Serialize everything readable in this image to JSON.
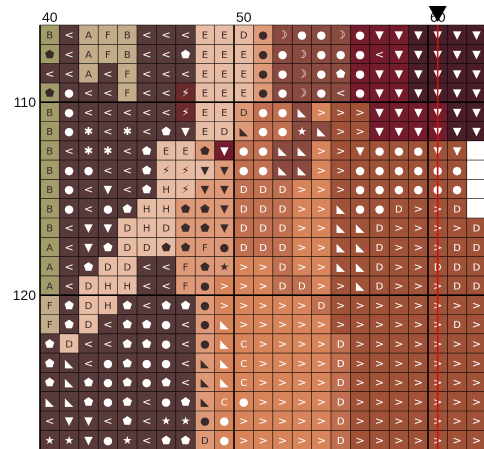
{
  "pattern": {
    "col_start": 40,
    "row_start": 106,
    "col_labels": [
      "40",
      "50",
      "60"
    ],
    "row_labels": [
      "110",
      "120"
    ],
    "colors": {
      "O": "#a39c6a",
      "G": "#8a7a4a",
      "S": "#c2ac8a",
      "R": "#a0522d",
      "M": "#593a3a",
      "N": "#6b2b2b",
      "W": "#741c2c",
      "B": "#8a4a40",
      "P": "#e8bca4",
      "Q": "#f0c8b0",
      "E": "#de9a78",
      "C": "#c07050",
      "K": "#d8845a",
      "L": "#ee9a68",
      "V": "#4a1e26",
      "D": "#5a1a2a",
      "H": "#a05238",
      "I": "#b06040"
    },
    "grid": [
      "B.O < A.S F.S B.S < < < E.P E.P D.P O.E K.B O.B O.B N.B O.W V.W V.W V.V V.V V.V V.V",
      "P.O < A.S F.S B.S < < P.M E.P E.P E.P O.E O.B K.B O.B N.B O.W N.W V.W V.V V.V V.V V.V",
      "< < A.S < F.S < < < E.P E.P E.P O.E O.B K.B O.B N.B O.W V.W V.W V.V V.V V.V V.V V.V",
      "P.O O.M < < F.S < < Z.N E.P E.P E.P O.E O.B K.B O.B N.B O.W V.W V.W V.V V.V V.V V.V",
      "B.O O.M < < < < < Z.N E.P E.P D.E O.C O.C T.B > > > V.W V.W V.W V.W V.V V.V",
      "B.O O.M X.M < X.M < P.M N.M E.P D.P T.E O.C O.C Y.B T.B > > V.W V.W V.W V.W V.V V.V",
      "B.O < X.M X.M < P.M E.P E.P P.E V.W O.C O.C T.B T.B > > V.H O.H O.H O.H V.H V.H",
      "B.O O.M O.M < < P.M Z.P Z.P V.P V.E O.C O.C T.B T.B > > O.H O.H O.H O.H O.H O.H",
      "B.O O.M < V.M < P.M H.P Z.P V.E V.E D.C D.C D.C > > > O.H O.H O.H O.H O.H O.H",
      "B.O O.M < O.M P.M H.P H.P P.E P.E V.E D.C D.C D.C > > T.H O.H O.H D.H > > D.H",
      "B.O < V.M V.M D.P H.P D.P P.E P.E V.E D.C D.C D.C > > T.H T.H D.H > > > > D.H",
      "A.O < V.M P.M D.P D.P P.P P.E F.E O.E D.C D.C D.C > > T.H T.H D.H > > > D.H D.H",
      "A.O < P.M D.P D.P < < F.E P.E Y.E > > D.C > > T.H T.H D.H > > D.H D.H D.H",
      "A.O < D.P H.P H.P < < F.E O.E > > > D.C D.C > > T.H D.H > > > D.H D.H",
      "F.S P.M D.P H.P P.M < P.M P.M O.E > > > > > D.C > > > > > > > > >",
      "F.S P.M D.P < P.M P.M O.M < O.E T.K > > > > > > > > > > > D.H >",
      "P.M D.P < < P.M P.M O.M < O.E T.K C.K > > > > D.C > > > > > > >",
      "P.M T.M < O.M P.M O.M O.M < T.E T.K C.K > > > > D.C > > > > > > >",
      "P.M T.M P.M O.M P.M O.M P.M < T.E T.K C.K > > > > D.C > > > > > > >",
      "T.M T.M P.M O.M P.M < O.M P.M T.E C.K O.K > > > > D.C > > > > > > >",
      "< V.M V.M < P.M < Y.M Y.M O.E O.K > > > > > D.C > > > > > > >",
      "Y.M Y.M V.M O.M Y.M < P.M P.M D.E O.K > > > > > D.C > > > > > > >"
    ]
  }
}
